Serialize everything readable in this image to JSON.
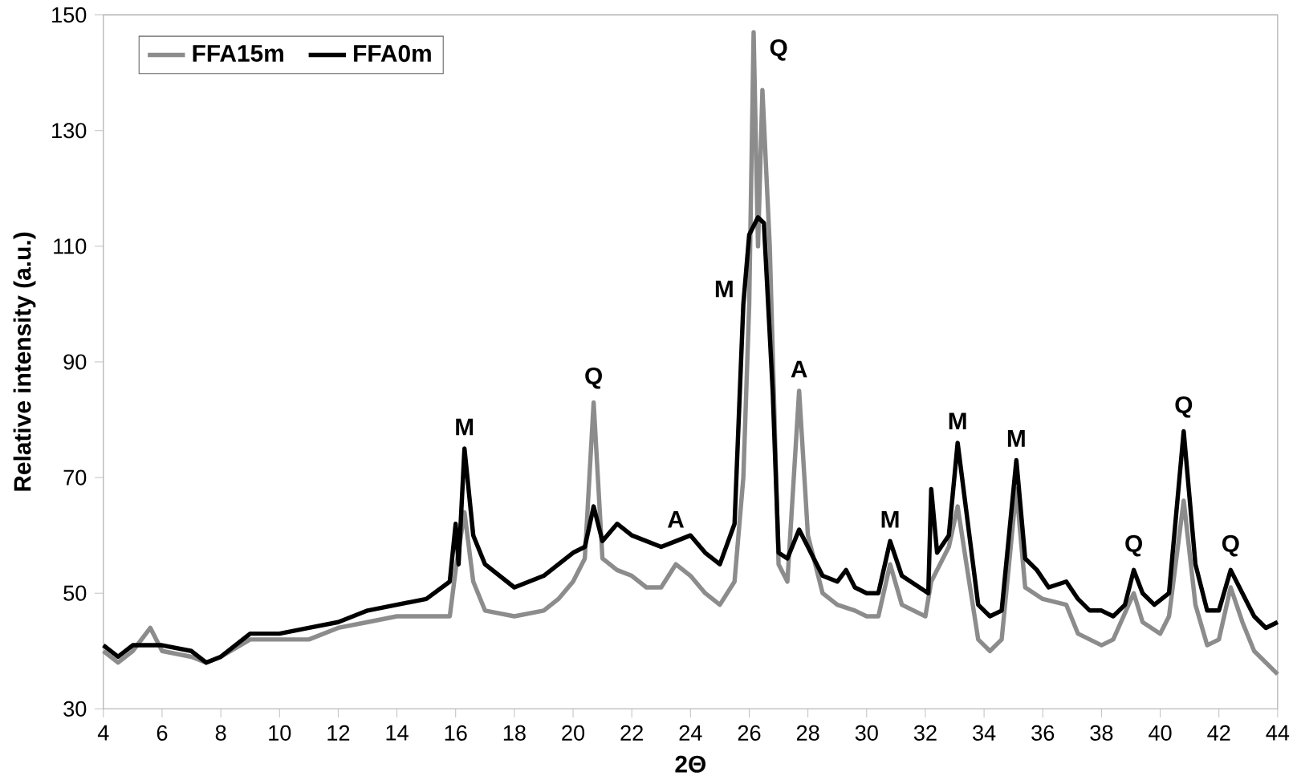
{
  "chart_data": {
    "type": "line",
    "xlabel": "2Θ",
    "ylabel": "Relative intensity (a.u.)",
    "xlim": [
      4,
      44
    ],
    "ylim": [
      30,
      150
    ],
    "xticks": [
      4,
      6,
      8,
      10,
      12,
      14,
      16,
      18,
      20,
      22,
      24,
      26,
      28,
      30,
      32,
      34,
      36,
      38,
      40,
      42,
      44
    ],
    "yticks": [
      30,
      50,
      70,
      90,
      110,
      130,
      150
    ],
    "grid": false,
    "legend": "top left",
    "marker": "none",
    "line_style": "solid",
    "series": [
      {
        "name": "FFA15m",
        "color": "#8c8c8c",
        "x": [
          4,
          4.5,
          5,
          5.6,
          6,
          7,
          7.5,
          8,
          9,
          10,
          11,
          12,
          13,
          14,
          15,
          15.8,
          16.0,
          16.3,
          16.6,
          17,
          18,
          19,
          19.5,
          20,
          20.4,
          20.7,
          21,
          21.5,
          22,
          22.5,
          23,
          23.5,
          24,
          24.5,
          25,
          25.5,
          25.8,
          26.0,
          26.15,
          26.3,
          26.45,
          26.7,
          27.0,
          27.3,
          27.7,
          28.0,
          28.5,
          29,
          29.6,
          30,
          30.4,
          30.8,
          31.2,
          32,
          32.2,
          32.8,
          33.1,
          33.4,
          33.8,
          34.2,
          34.6,
          35.1,
          35.4,
          36,
          36.8,
          37.2,
          38,
          38.4,
          39.1,
          39.4,
          40,
          40.3,
          40.8,
          41.2,
          41.6,
          42,
          42.4,
          42.8,
          43.2,
          44
        ],
        "values": [
          40,
          38,
          40,
          44,
          40,
          39,
          38,
          39,
          42,
          42,
          42,
          44,
          45,
          46,
          46,
          46,
          54,
          64,
          52,
          47,
          46,
          47,
          49,
          52,
          56,
          83,
          56,
          54,
          53,
          51,
          51,
          55,
          53,
          50,
          48,
          52,
          70,
          100,
          147,
          110,
          137,
          110,
          55,
          52,
          85,
          60,
          50,
          48,
          47,
          46,
          46,
          55,
          48,
          46,
          52,
          58,
          65,
          55,
          42,
          40,
          42,
          68,
          51,
          49,
          48,
          43,
          41,
          42,
          50,
          45,
          43,
          46,
          66,
          48,
          41,
          42,
          51,
          45,
          40,
          36
        ]
      },
      {
        "name": "FFA0m",
        "color": "#000000",
        "x": [
          4,
          4.5,
          5,
          6,
          7,
          7.5,
          8,
          9,
          10,
          11,
          12,
          13,
          14,
          15,
          15.8,
          16.0,
          16.1,
          16.3,
          16.6,
          17,
          17.5,
          18,
          19,
          19.5,
          20,
          20.4,
          20.7,
          21,
          21.5,
          22,
          22.5,
          23,
          23.5,
          24,
          24.5,
          25,
          25.5,
          25.8,
          26.0,
          26.3,
          26.5,
          26.8,
          27.0,
          27.3,
          27.7,
          28,
          28.5,
          29,
          29.3,
          29.6,
          30,
          30.4,
          30.8,
          31.2,
          31.8,
          32.1,
          32.2,
          32.4,
          32.8,
          33.1,
          33.4,
          33.8,
          34.2,
          34.6,
          35.1,
          35.4,
          35.8,
          36.2,
          36.8,
          37.2,
          37.6,
          38,
          38.4,
          38.8,
          39.1,
          39.4,
          39.8,
          40.3,
          40.8,
          41.2,
          41.6,
          42,
          42.4,
          42.8,
          43.2,
          43.6,
          44
        ],
        "values": [
          41,
          39,
          41,
          41,
          40,
          38,
          39,
          43,
          43,
          44,
          45,
          47,
          48,
          49,
          52,
          62,
          55,
          75,
          60,
          55,
          53,
          51,
          53,
          55,
          57,
          58,
          65,
          59,
          62,
          60,
          59,
          58,
          59,
          60,
          57,
          55,
          62,
          100,
          112,
          115,
          114,
          85,
          57,
          56,
          61,
          58,
          53,
          52,
          54,
          51,
          50,
          50,
          59,
          53,
          51,
          50,
          68,
          57,
          60,
          76,
          64,
          48,
          46,
          47,
          73,
          56,
          54,
          51,
          52,
          49,
          47,
          47,
          46,
          48,
          54,
          50,
          48,
          50,
          78,
          55,
          47,
          47,
          54,
          50,
          46,
          44,
          45
        ]
      }
    ],
    "annotations": [
      {
        "text": "M",
        "x": 16.3,
        "y": 75
      },
      {
        "text": "Q",
        "x": 20.7,
        "y": 83
      },
      {
        "text": "A",
        "x": 23.5,
        "y": 59
      },
      {
        "text": "M",
        "x": 25.8,
        "y": 100
      },
      {
        "text": "Q",
        "x": 26.15,
        "y": 147
      },
      {
        "text": "A",
        "x": 27.7,
        "y": 85
      },
      {
        "text": "M",
        "x": 30.8,
        "y": 59
      },
      {
        "text": "M",
        "x": 33.1,
        "y": 76
      },
      {
        "text": "M",
        "x": 35.1,
        "y": 73
      },
      {
        "text": "Q",
        "x": 39.1,
        "y": 54
      },
      {
        "text": "Q",
        "x": 40.8,
        "y": 78
      },
      {
        "text": "Q",
        "x": 42.4,
        "y": 54
      }
    ]
  }
}
